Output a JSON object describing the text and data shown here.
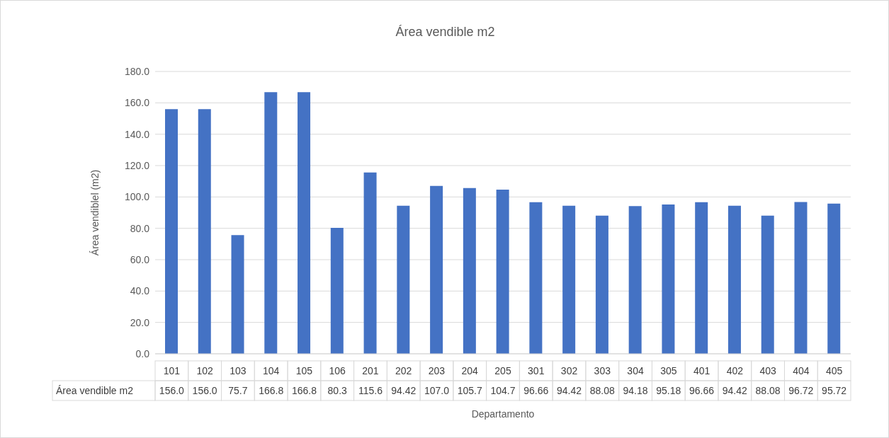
{
  "chart_data": {
    "type": "bar",
    "title": "Área vendible m2",
    "xlabel": "Departamento",
    "ylabel": "Área vendiblel (m2)",
    "categories": [
      "101",
      "102",
      "103",
      "104",
      "105",
      "106",
      "201",
      "202",
      "203",
      "204",
      "205",
      "301",
      "302",
      "303",
      "304",
      "305",
      "401",
      "402",
      "403",
      "404",
      "405"
    ],
    "series": [
      {
        "name": "Área vendible m2",
        "color": "#4472c4",
        "values": [
          156.0,
          156.0,
          75.7,
          166.8,
          166.8,
          80.3,
          115.6,
          94.42,
          107.0,
          105.7,
          104.7,
          96.66,
          94.42,
          88.08,
          94.18,
          95.18,
          96.66,
          94.42,
          88.08,
          96.72,
          95.72
        ],
        "value_labels": [
          "156.0",
          "156.0",
          "75.7",
          "166.8",
          "166.8",
          "80.3",
          "115.6",
          "94.42",
          "107.0",
          "105.7",
          "104.7",
          "96.66",
          "94.42",
          "88.08",
          "94.18",
          "95.18",
          "96.66",
          "94.42",
          "88.08",
          "96.72",
          "95.72"
        ]
      }
    ],
    "ylim": [
      0,
      180
    ],
    "yticks": [
      {
        "value": 0,
        "label": "0.0"
      },
      {
        "value": 20,
        "label": "20.0"
      },
      {
        "value": 40,
        "label": "40.0"
      },
      {
        "value": 60,
        "label": "60.0"
      },
      {
        "value": 80,
        "label": "80.0"
      },
      {
        "value": 100,
        "label": "100.0"
      },
      {
        "value": 120,
        "label": "120.0"
      },
      {
        "value": 140,
        "label": "140.0"
      },
      {
        "value": 160,
        "label": "160.0"
      },
      {
        "value": 180,
        "label": "180.0"
      }
    ],
    "grid": "y",
    "legend": false
  }
}
